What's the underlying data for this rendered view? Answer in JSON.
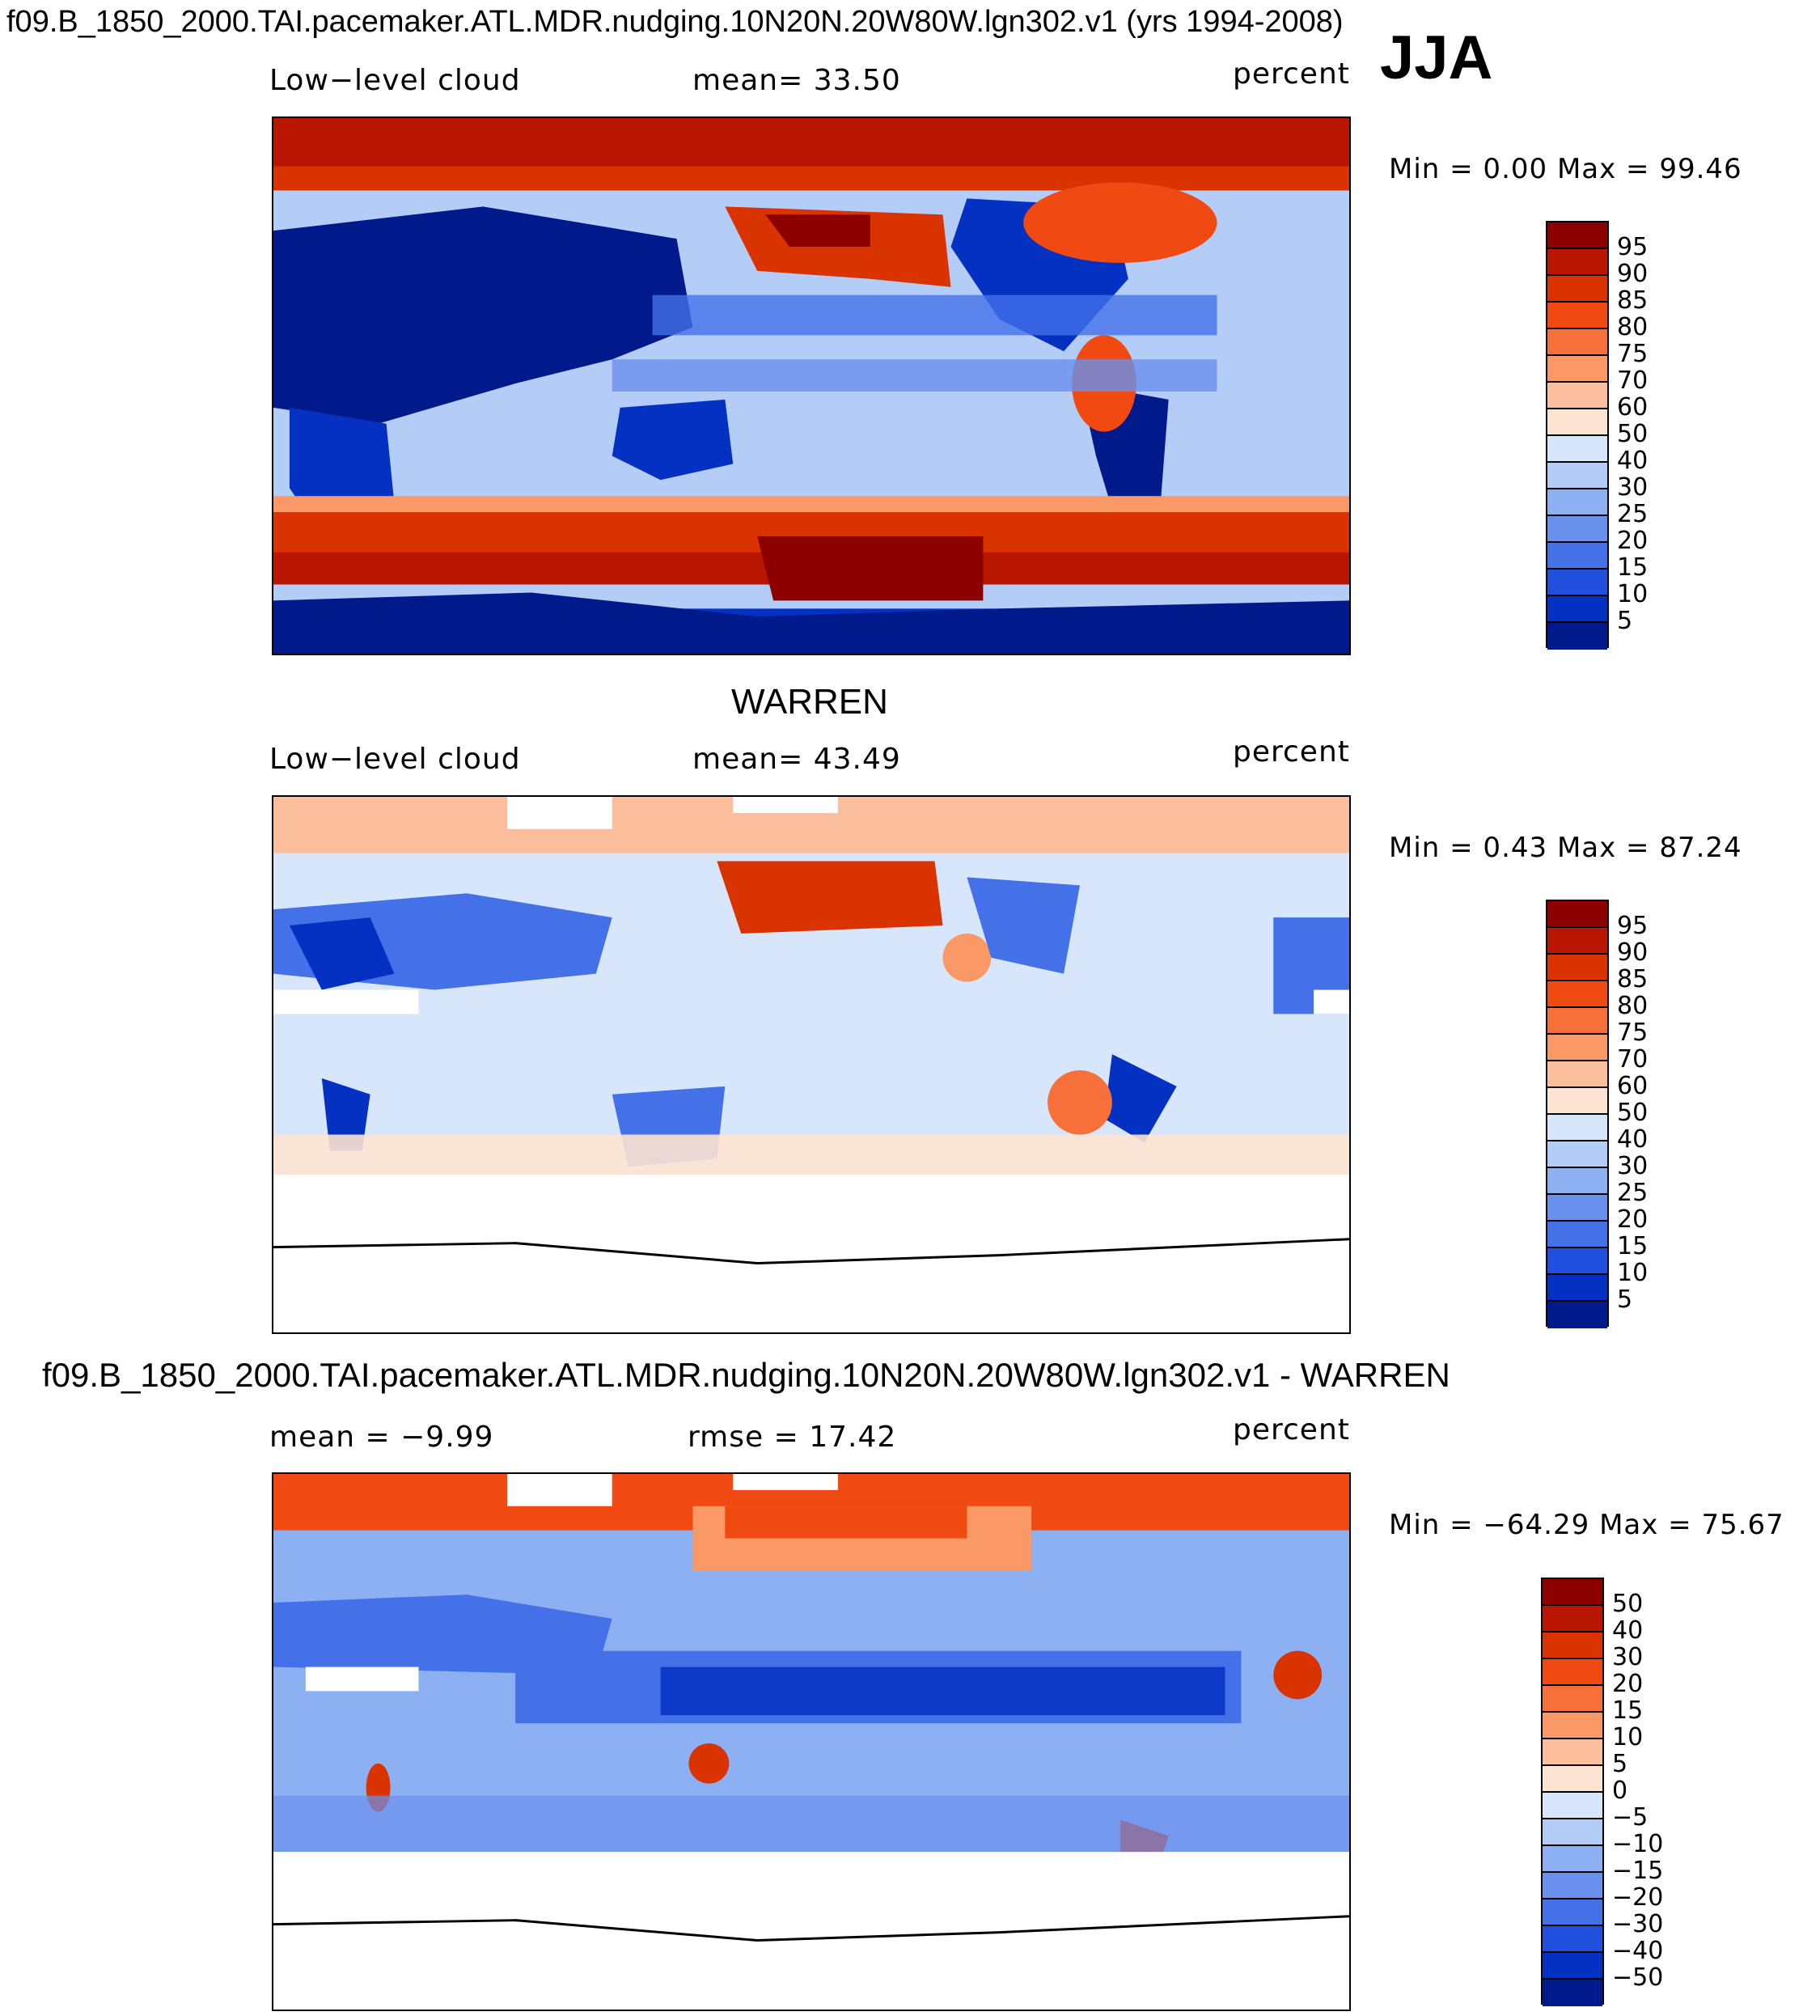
{
  "header": {
    "title": "f09.B_1850_2000.TAI.pacemaker.ATL.MDR.nudging.10N20N.20W80W.lgn302.v1 (yrs 1994-2008)",
    "season": "JJA"
  },
  "panels": [
    {
      "id": "model",
      "left_label": "Low−level cloud",
      "mid_label": "mean=   33.50",
      "units": "percent",
      "minmax": "Min =     0.00  Max =    99.46"
    },
    {
      "id": "obs",
      "title": "WARREN",
      "left_label": "Low−level cloud",
      "mid_label": "mean=   43.49",
      "units": "percent",
      "minmax": "Min =     0.43  Max =    87.24"
    },
    {
      "id": "diff",
      "title": "f09.B_1850_2000.TAI.pacemaker.ATL.MDR.nudging.10N20N.20W80W.lgn302.v1 - WARREN",
      "left_label": "mean =   −9.99",
      "mid_label": "rmse =   17.42",
      "units": "percent",
      "minmax": "Min = −64.29  Max =    75.67"
    }
  ],
  "chart_data": [
    {
      "type": "heatmap",
      "title": "Low-level cloud",
      "panel": "model",
      "units": "percent",
      "mean": 33.5,
      "min": 0.0,
      "max": 99.46,
      "colorbar": {
        "labels": [
          "95",
          "90",
          "85",
          "80",
          "75",
          "70",
          "60",
          "50",
          "40",
          "30",
          "25",
          "20",
          "15",
          "10",
          "5"
        ],
        "colors": [
          "#8c0000",
          "#b81600",
          "#d93300",
          "#f04a12",
          "#f7703a",
          "#fa9866",
          "#fcbf9e",
          "#fde3d2",
          "#d7e6fb",
          "#b3cdf7",
          "#8db0f2",
          "#6a90ee",
          "#4470e8",
          "#1f4fdc",
          "#0431c2",
          "#001a8c"
        ]
      },
      "annotations": [
        "Low−level cloud",
        "mean=   33.50",
        "percent",
        "Min = 0.00 Max = 99.46"
      ]
    },
    {
      "type": "heatmap",
      "title": "WARREN",
      "panel": "obs",
      "units": "percent",
      "mean": 43.49,
      "min": 0.43,
      "max": 87.24,
      "colorbar": {
        "labels": [
          "95",
          "90",
          "85",
          "80",
          "75",
          "70",
          "60",
          "50",
          "40",
          "30",
          "25",
          "20",
          "15",
          "10",
          "5"
        ],
        "colors": [
          "#8c0000",
          "#b81600",
          "#d93300",
          "#f04a12",
          "#f7703a",
          "#fa9866",
          "#fcbf9e",
          "#fde3d2",
          "#d7e6fb",
          "#b3cdf7",
          "#8db0f2",
          "#6a90ee",
          "#4470e8",
          "#1f4fdc",
          "#0431c2",
          "#001a8c"
        ]
      },
      "annotations": [
        "Low−level cloud",
        "mean=   43.49",
        "percent",
        "Min = 0.43 Max = 87.24"
      ]
    },
    {
      "type": "heatmap",
      "title": "f09.B_1850_2000.TAI.pacemaker.ATL.MDR.nudging.10N20N.20W80W.lgn302.v1 - WARREN",
      "panel": "diff",
      "units": "percent",
      "mean": -9.99,
      "rmse": 17.42,
      "min": -64.29,
      "max": 75.67,
      "colorbar": {
        "labels": [
          "50",
          "40",
          "30",
          "20",
          "15",
          "10",
          "5",
          "0",
          "−5",
          "−10",
          "−15",
          "−20",
          "−30",
          "−40",
          "−50"
        ],
        "colors": [
          "#8c0000",
          "#b81600",
          "#d93300",
          "#f04a12",
          "#f7703a",
          "#fa9866",
          "#fcbf9e",
          "#fde3d2",
          "#d7e6fb",
          "#b3cdf7",
          "#8db0f2",
          "#6a90ee",
          "#4470e8",
          "#1f4fdc",
          "#0431c2",
          "#001a8c"
        ]
      },
      "annotations": [
        "mean = −9.99",
        "rmse = 17.42",
        "percent",
        "Min = −64.29 Max = 75.67"
      ]
    }
  ]
}
